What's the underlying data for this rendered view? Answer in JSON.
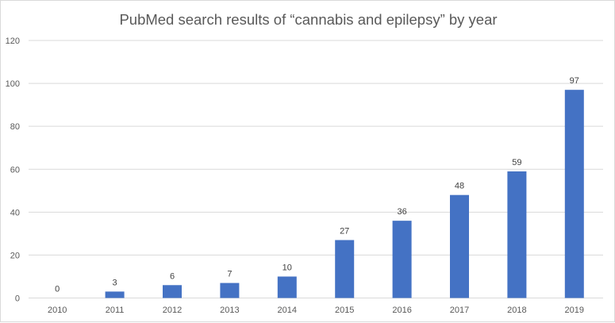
{
  "chart_data": {
    "type": "bar",
    "title": "PubMed search results of “cannabis and epilepsy” by year",
    "xlabel": "",
    "ylabel": "",
    "categories": [
      "2010",
      "2011",
      "2012",
      "2013",
      "2014",
      "2015",
      "2016",
      "2017",
      "2018",
      "2019"
    ],
    "values": [
      0,
      3,
      6,
      7,
      10,
      27,
      36,
      48,
      59,
      97
    ],
    "ylim": [
      0,
      120
    ],
    "yticks": [
      0,
      20,
      40,
      60,
      80,
      100,
      120
    ],
    "grid": true,
    "legend": "none",
    "data_labels": true,
    "colors": {
      "bar": "#4472c4",
      "grid": "#d9d9d9",
      "text": "#595959"
    }
  }
}
